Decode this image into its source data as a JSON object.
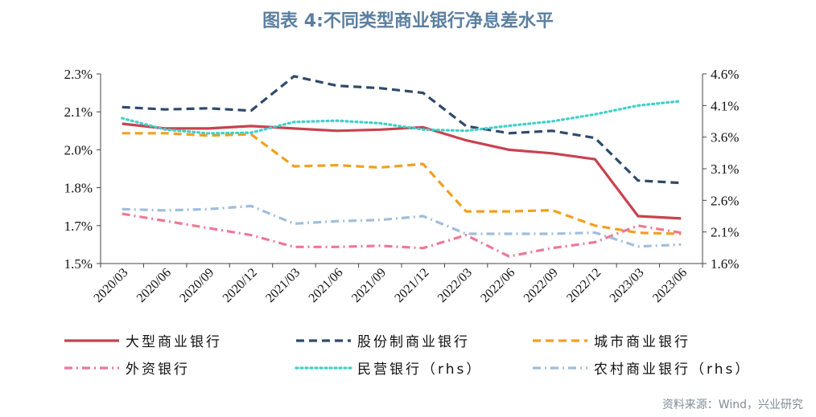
{
  "title": "图表 4:不同类型商业银行净息差水平",
  "source": "资料来源：Wind，兴业研究",
  "chart_data": {
    "type": "line",
    "x": [
      "2020/03",
      "2020/06",
      "2020/09",
      "2020/12",
      "2021/03",
      "2021/06",
      "2021/09",
      "2021/12",
      "2022/03",
      "2022/06",
      "2022/09",
      "2022/12",
      "2023/03",
      "2023/06"
    ],
    "y_left": {
      "ticks": [
        "1.5%",
        "1.7%",
        "1.8%",
        "2.0%",
        "2.1%",
        "2.3%"
      ],
      "ylim": [
        1.5,
        2.3
      ]
    },
    "y_right": {
      "ticks": [
        "1.6%",
        "2.1%",
        "2.6%",
        "3.1%",
        "3.6%",
        "4.1%",
        "4.6%"
      ],
      "ylim": [
        1.6,
        4.6
      ]
    },
    "series": [
      {
        "name": "大型商业银行",
        "axis": "left",
        "color": "#c8424f",
        "dash": "solid",
        "values": [
          2.09,
          2.07,
          2.07,
          2.08,
          2.07,
          2.06,
          2.065,
          2.075,
          2.02,
          1.98,
          1.965,
          1.94,
          1.7,
          1.69
        ]
      },
      {
        "name": "股份制商业银行",
        "axis": "left",
        "color": "#2e4a6b",
        "dash": "dash",
        "values": [
          2.16,
          2.15,
          2.155,
          2.145,
          2.29,
          2.25,
          2.24,
          2.22,
          2.08,
          2.05,
          2.06,
          2.03,
          1.85,
          1.84
        ]
      },
      {
        "name": "城市商业银行",
        "axis": "left",
        "color": "#f0a020",
        "dash": "dash",
        "values": [
          2.05,
          2.05,
          2.04,
          2.045,
          1.91,
          1.915,
          1.905,
          1.92,
          1.72,
          1.72,
          1.725,
          1.66,
          1.63,
          1.625
        ]
      },
      {
        "name": "外资银行",
        "axis": "left",
        "color": "#ee7896",
        "dash": "dashdot",
        "values": [
          1.71,
          1.68,
          1.65,
          1.62,
          1.57,
          1.57,
          1.575,
          1.565,
          1.62,
          1.53,
          1.565,
          1.59,
          1.66,
          1.63
        ]
      },
      {
        "name": "民营银行（rhs）",
        "axis": "right",
        "color": "#40d0c8",
        "dash": "dot",
        "values": [
          3.9,
          3.72,
          3.66,
          3.67,
          3.84,
          3.86,
          3.82,
          3.72,
          3.7,
          3.78,
          3.85,
          3.96,
          4.1,
          4.17
        ]
      },
      {
        "name": "农村商业银行（rhs）",
        "axis": "right",
        "color": "#a0bedb",
        "dash": "dashdot",
        "values": [
          2.46,
          2.44,
          2.46,
          2.51,
          2.23,
          2.27,
          2.29,
          2.35,
          2.07,
          2.07,
          2.07,
          2.09,
          1.87,
          1.9
        ]
      }
    ],
    "legend_position": "bottom",
    "grid": false
  }
}
